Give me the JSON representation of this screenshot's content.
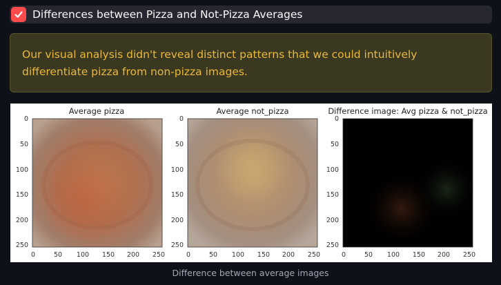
{
  "expander": {
    "title": "Differences between Pizza and Not-Pizza Averages",
    "checked": true
  },
  "alert": {
    "text": "Our visual analysis didn't reveal distinct patterns that we could intuitively differentiate pizza from non-pizza images."
  },
  "figure": {
    "panels": [
      {
        "title": "Average pizza",
        "image": "average-pizza-image"
      },
      {
        "title": "Average not_pizza",
        "image": "average-not-pizza-image"
      },
      {
        "title": "Difference image: Avg pizza & not_pizza",
        "image": "difference-image"
      }
    ],
    "x_ticks": [
      "0",
      "50",
      "100",
      "150",
      "200",
      "250"
    ],
    "y_ticks": [
      "0",
      "50",
      "100",
      "150",
      "200",
      "250"
    ]
  },
  "caption": "Difference between average images"
}
